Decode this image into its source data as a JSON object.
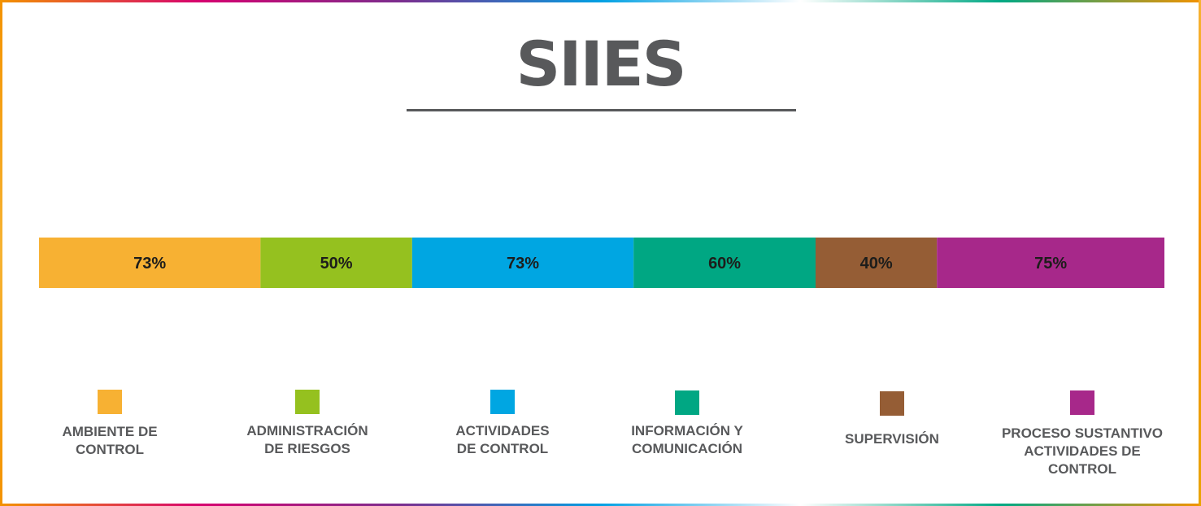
{
  "title": "SIIES",
  "chart_data": {
    "type": "bar",
    "orientation": "horizontal-stacked",
    "title": "SIIES",
    "categories": [
      "AMBIENTE DE CONTROL",
      "ADMINISTRACIÓN DE RIESGOS",
      "ACTIVIDADES DE CONTROL",
      "INFORMACIÓN Y COMUNICACIÓN",
      "SUPERVISIÓN",
      "PROCESO SUSTANTIVO ACTIVIDADES DE CONTROL"
    ],
    "values": [
      73,
      50,
      73,
      60,
      40,
      75
    ],
    "value_labels": [
      "73%",
      "50%",
      "73%",
      "60%",
      "40%",
      "75%"
    ],
    "colors": [
      "#f7b133",
      "#95c11f",
      "#00a6e2",
      "#00a783",
      "#955d35",
      "#a7288a"
    ],
    "legend_placement": "bottom",
    "grid": false
  },
  "legend": [
    {
      "label": "AMBIENTE DE\nCONTROL",
      "color": "#f7b133",
      "icon": "square"
    },
    {
      "label": "ADMINISTRACIÓN\nDE RIESGOS",
      "color": "#95c11f",
      "icon": "square"
    },
    {
      "label": "ACTIVIDADES\nDE CONTROL",
      "color": "#00a6e2",
      "icon": "square"
    },
    {
      "label": "INFORMACIÓN Y\nCOMUNICACIÓN",
      "color": "#00a783",
      "icon": "square"
    },
    {
      "label": "SUPERVISIÓN",
      "color": "#955d35",
      "icon": "square"
    },
    {
      "label": "PROCESO SUSTANTIVO\nACTIVIDADES DE\nCONTROL",
      "color": "#a7288a",
      "icon": "square"
    }
  ]
}
